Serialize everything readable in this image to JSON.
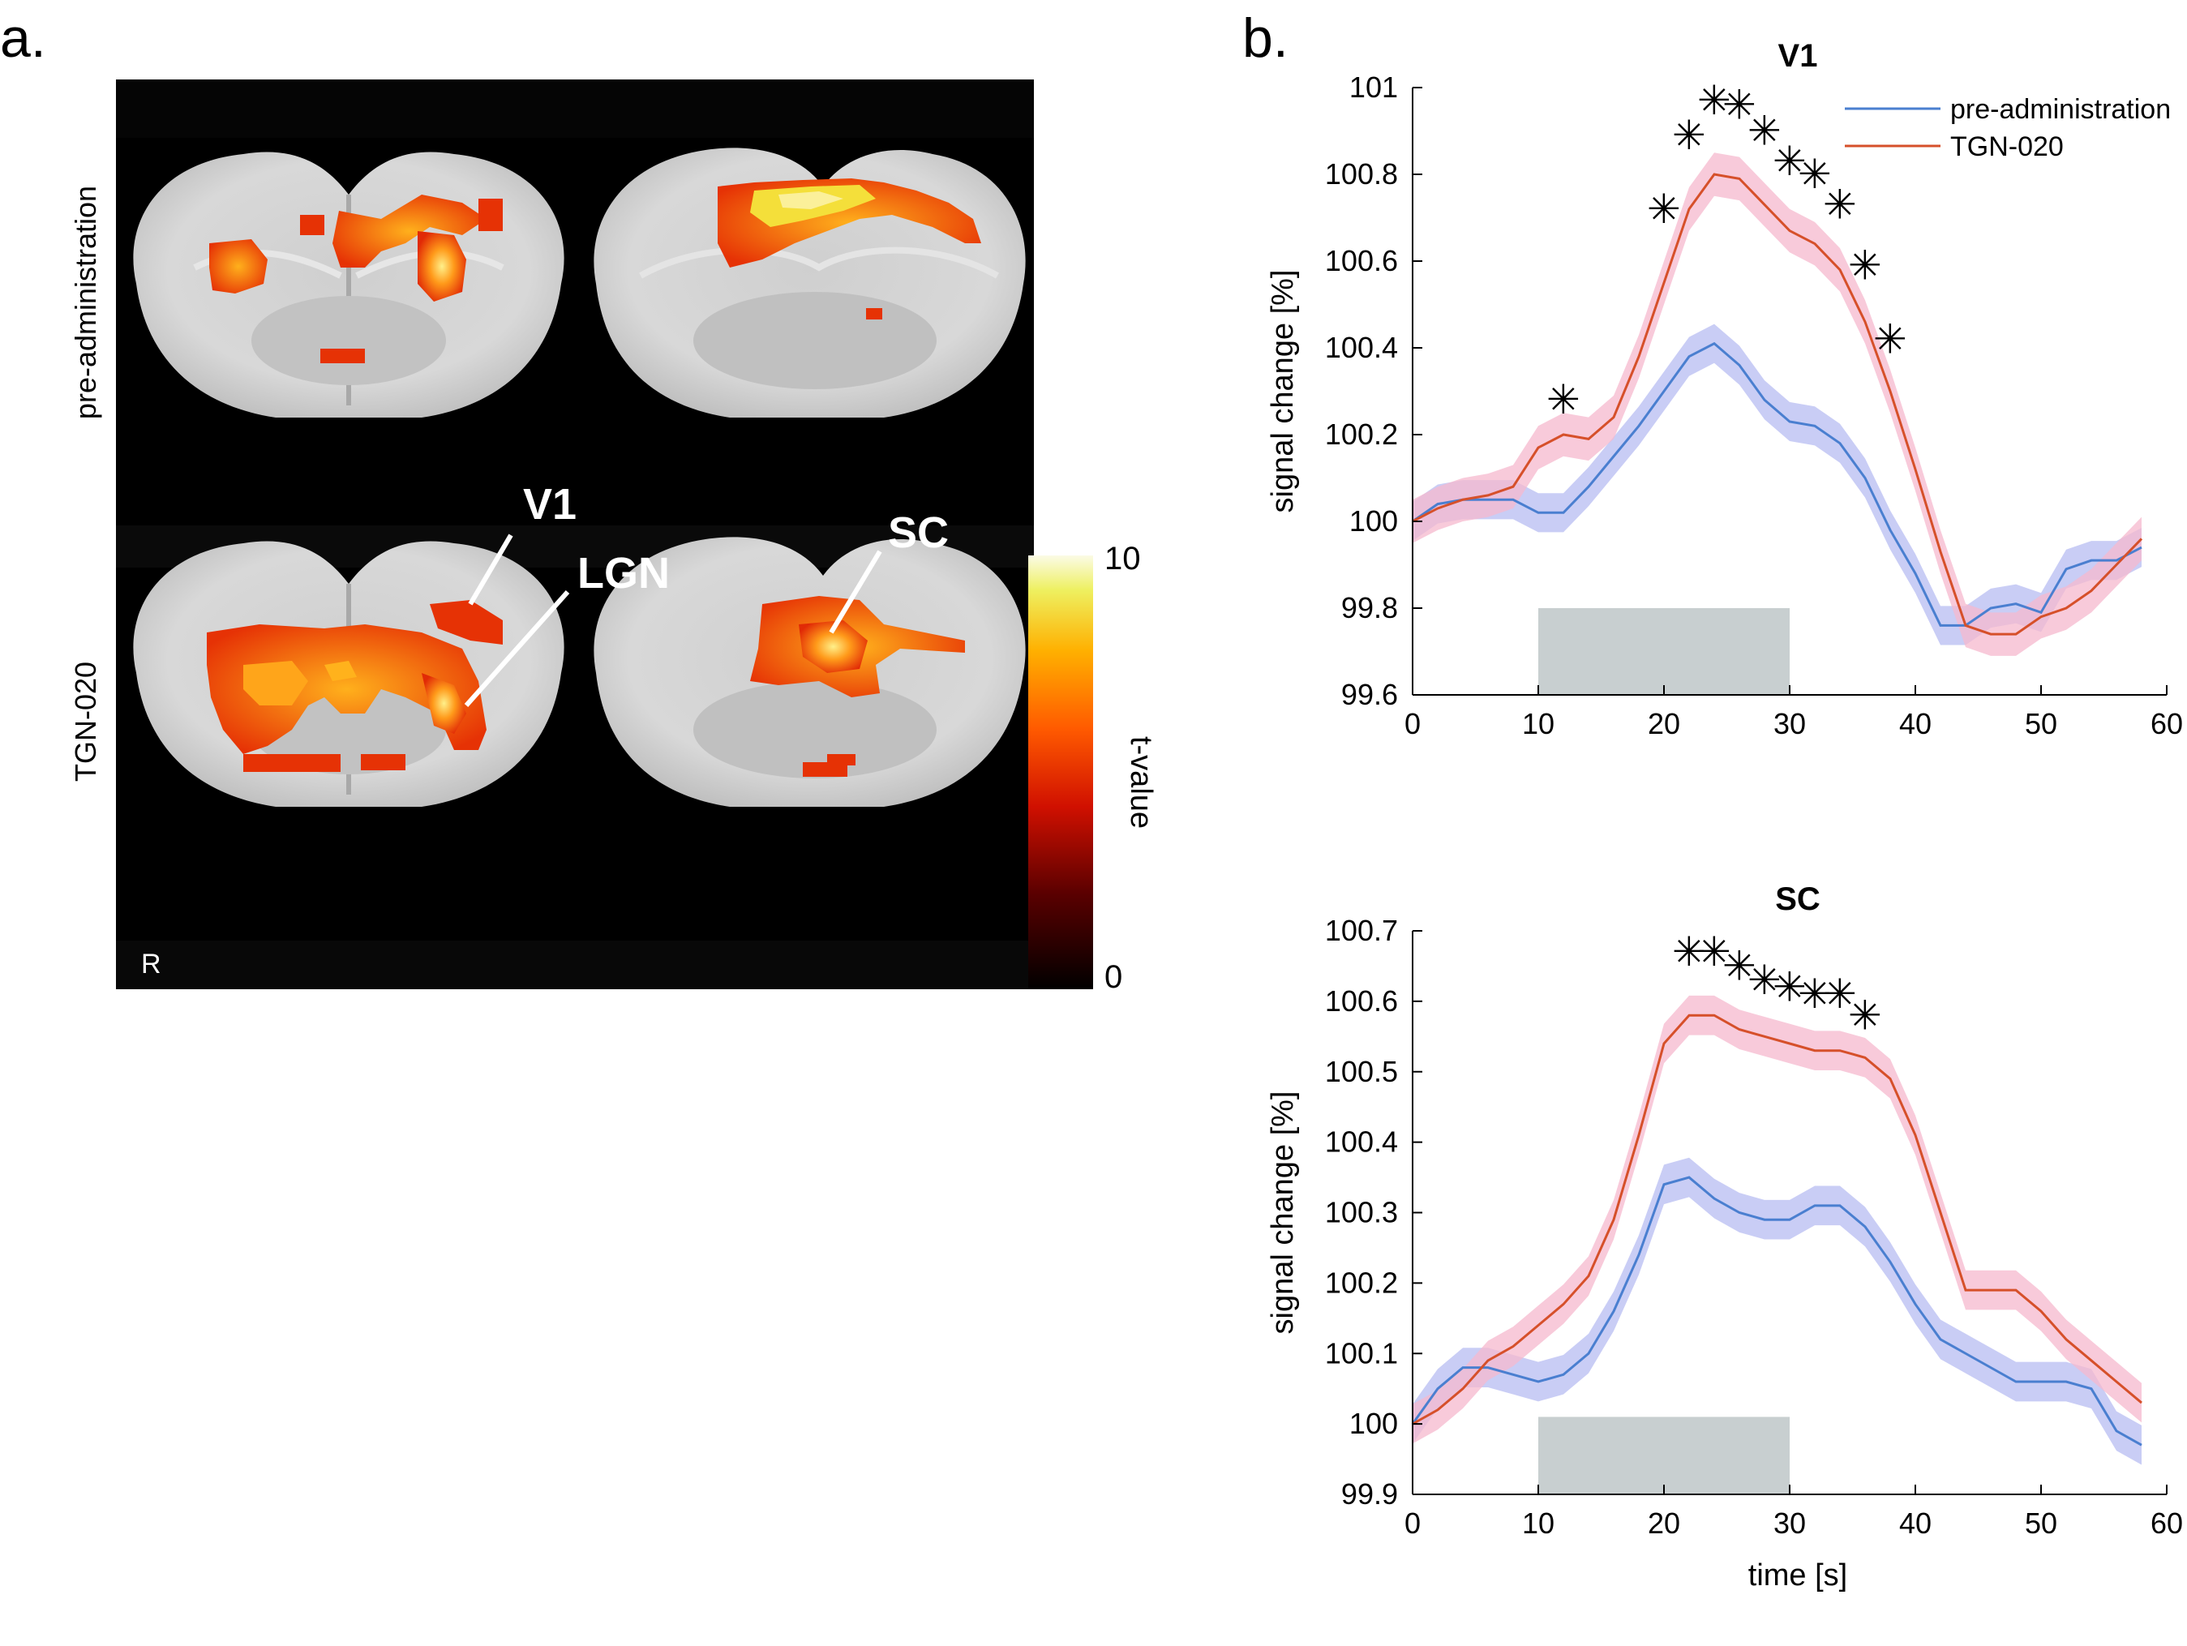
{
  "panel_a": {
    "letter": "a.",
    "row_labels": [
      "pre-administration",
      "TGN-020"
    ],
    "annotations": {
      "v1": "V1",
      "lgn": "LGN",
      "sc": "SC"
    },
    "orientation_marker": "R",
    "colorbar": {
      "label": "t-value",
      "min_label": "0",
      "max_label": "10"
    }
  },
  "panel_b": {
    "letter": "b."
  },
  "chart_data": [
    {
      "type": "line",
      "title": "V1",
      "xlabel": "",
      "ylabel": "signal change [%]",
      "xlim": [
        0,
        60
      ],
      "ylim": [
        99.6,
        101
      ],
      "xticks": [
        0,
        10,
        20,
        30,
        40,
        50,
        60
      ],
      "yticks": [
        99.6,
        99.8,
        100,
        100.2,
        100.4,
        100.6,
        100.8,
        101
      ],
      "ytick_labels": [
        "99.6",
        "99.8",
        "100",
        "100.2",
        "100.4",
        "100.6",
        "100.8",
        "101"
      ],
      "x": [
        0,
        2,
        4,
        6,
        8,
        10,
        12,
        14,
        16,
        18,
        20,
        22,
        24,
        26,
        28,
        30,
        32,
        34,
        36,
        38,
        40,
        42,
        44,
        46,
        48,
        50,
        52,
        54,
        56,
        58
      ],
      "series": [
        {
          "name": "pre-administration",
          "color": "#4a7fd0",
          "band_color": "#b7bcf2",
          "values": [
            100.0,
            100.04,
            100.05,
            100.05,
            100.05,
            100.02,
            100.02,
            100.08,
            100.15,
            100.22,
            100.3,
            100.38,
            100.41,
            100.36,
            100.28,
            100.23,
            100.22,
            100.18,
            100.1,
            99.98,
            99.88,
            99.76,
            99.76,
            99.8,
            99.81,
            99.79,
            99.89,
            99.91,
            99.91,
            99.94
          ],
          "band": 0.045
        },
        {
          "name": "TGN-020",
          "color": "#d6502a",
          "band_color": "#f6b8cd",
          "values": [
            100.0,
            100.03,
            100.05,
            100.06,
            100.08,
            100.17,
            100.2,
            100.19,
            100.24,
            100.38,
            100.55,
            100.72,
            100.8,
            100.79,
            100.73,
            100.67,
            100.64,
            100.58,
            100.46,
            100.3,
            100.12,
            99.93,
            99.76,
            99.74,
            99.74,
            99.78,
            99.8,
            99.84,
            99.9,
            99.96
          ],
          "band": 0.05
        }
      ],
      "stimulus": {
        "x_start": 10,
        "x_end": 30,
        "y_bottom": 99.6,
        "y_top": 99.8,
        "color": "#c8cfd0"
      },
      "significance_markers": [
        {
          "x": 12,
          "y": 100.28
        },
        {
          "x": 20,
          "y": 100.72
        },
        {
          "x": 22,
          "y": 100.89
        },
        {
          "x": 24,
          "y": 100.97
        },
        {
          "x": 26,
          "y": 100.96
        },
        {
          "x": 28,
          "y": 100.9
        },
        {
          "x": 30,
          "y": 100.83
        },
        {
          "x": 32,
          "y": 100.8
        },
        {
          "x": 34,
          "y": 100.73
        },
        {
          "x": 36,
          "y": 100.59
        },
        {
          "x": 38,
          "y": 100.42
        }
      ],
      "marker_glyph": "✳",
      "legend": {
        "position": "top-right",
        "entries": [
          "pre-administration",
          "TGN-020"
        ]
      }
    },
    {
      "type": "line",
      "title": "SC",
      "xlabel": "time [s]",
      "ylabel": "signal change [%]",
      "xlim": [
        0,
        60
      ],
      "ylim": [
        99.9,
        100.7
      ],
      "xticks": [
        0,
        10,
        20,
        30,
        40,
        50,
        60
      ],
      "yticks": [
        99.9,
        100,
        100.1,
        100.2,
        100.3,
        100.4,
        100.5,
        100.6,
        100.7
      ],
      "ytick_labels": [
        "99.9",
        "100",
        "100.1",
        "100.2",
        "100.3",
        "100.4",
        "100.5",
        "100.6",
        "100.7"
      ],
      "x": [
        0,
        2,
        4,
        6,
        8,
        10,
        12,
        14,
        16,
        18,
        20,
        22,
        24,
        26,
        28,
        30,
        32,
        34,
        36,
        38,
        40,
        42,
        44,
        46,
        48,
        50,
        52,
        54,
        56,
        58
      ],
      "series": [
        {
          "name": "pre-administration",
          "color": "#4a7fd0",
          "band_color": "#b7bcf2",
          "values": [
            100.0,
            100.05,
            100.08,
            100.08,
            100.07,
            100.06,
            100.07,
            100.1,
            100.16,
            100.24,
            100.34,
            100.35,
            100.32,
            100.3,
            100.29,
            100.29,
            100.31,
            100.31,
            100.28,
            100.23,
            100.17,
            100.12,
            100.1,
            100.08,
            100.06,
            100.06,
            100.06,
            100.05,
            99.99,
            99.97
          ],
          "band": 0.028
        },
        {
          "name": "TGN-020",
          "color": "#d6502a",
          "band_color": "#f6b8cd",
          "values": [
            100.0,
            100.02,
            100.05,
            100.09,
            100.11,
            100.14,
            100.17,
            100.21,
            100.29,
            100.41,
            100.54,
            100.58,
            100.58,
            100.56,
            100.55,
            100.54,
            100.53,
            100.53,
            100.52,
            100.49,
            100.41,
            100.3,
            100.19,
            100.19,
            100.19,
            100.16,
            100.12,
            100.09,
            100.06,
            100.03
          ],
          "band": 0.028
        }
      ],
      "stimulus": {
        "x_start": 10,
        "x_end": 30,
        "y_bottom": 99.9,
        "y_top": 100.01,
        "color": "#c8cfd0"
      },
      "significance_markers": [
        {
          "x": 22,
          "y": 100.67
        },
        {
          "x": 24,
          "y": 100.67
        },
        {
          "x": 26,
          "y": 100.65
        },
        {
          "x": 28,
          "y": 100.63
        },
        {
          "x": 30,
          "y": 100.62
        },
        {
          "x": 32,
          "y": 100.61
        },
        {
          "x": 34,
          "y": 100.61
        },
        {
          "x": 36,
          "y": 100.58
        }
      ],
      "marker_glyph": "✳"
    }
  ]
}
